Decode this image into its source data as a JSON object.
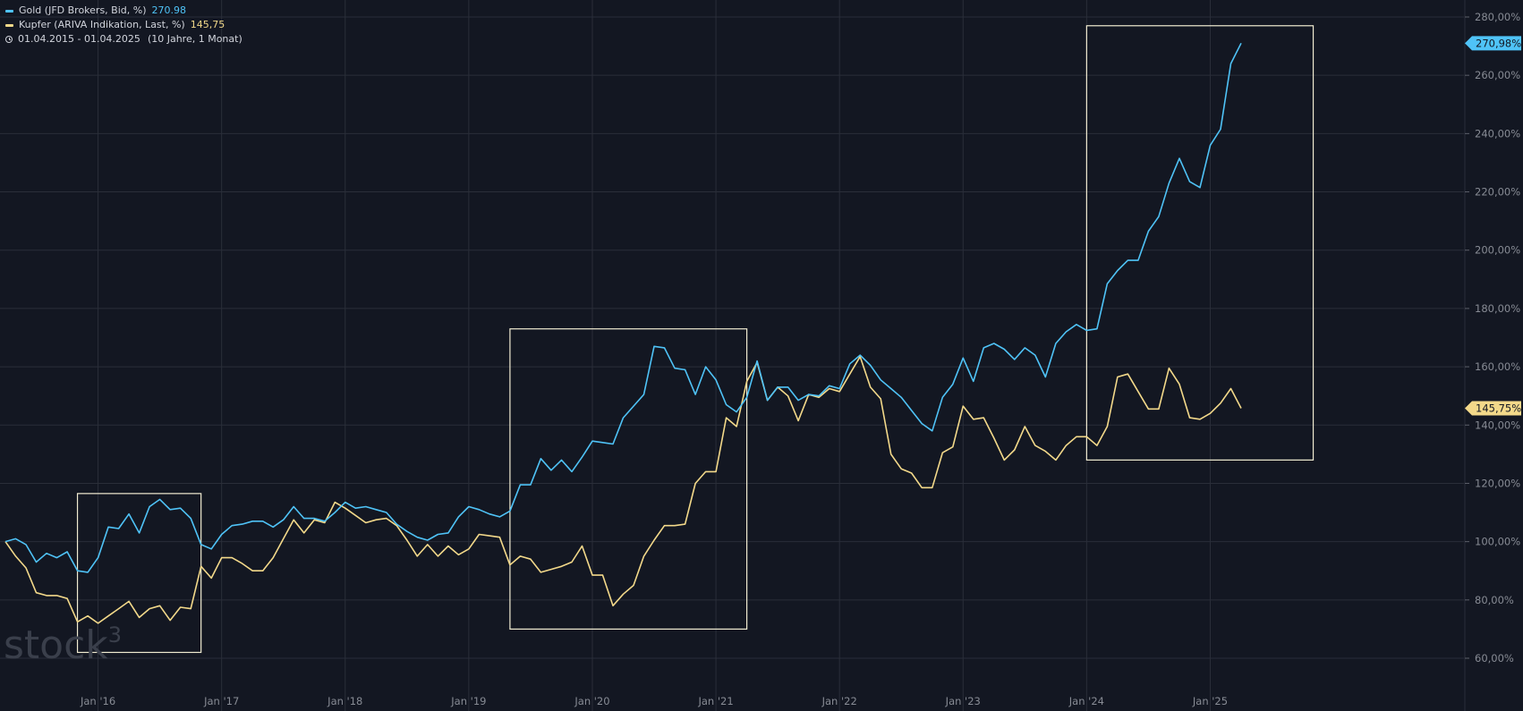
{
  "legend": {
    "gold_label": "Gold (JFD Brokers, Bid, %)",
    "gold_value": "270.98",
    "copper_label": "Kupfer (ARIVA Indikation, Last, %)",
    "copper_value": "145,75",
    "period": "01.04.2015 - 01.04.2025",
    "period_detail": "(10 Jahre, 1 Monat)"
  },
  "watermark": {
    "brand": "stock",
    "superscript": "3"
  },
  "colors": {
    "background": "#131722",
    "grid": "#2a2e39",
    "gold": "#4fc3f7",
    "copper": "#f3d98a",
    "axis_text": "#878b94",
    "box": "#f1ecd2"
  },
  "chart_data": {
    "type": "line",
    "ylim": [
      50,
      290
    ],
    "y_ticks": [
      60,
      80,
      100,
      120,
      140,
      160,
      180,
      200,
      220,
      240,
      260,
      280
    ],
    "y_tick_labels": [
      "60,00%",
      "80,00%",
      "100,00%",
      "120,00%",
      "140,00%",
      "160,00%",
      "180,00%",
      "200,00%",
      "220,00%",
      "240,00%",
      "260,00%",
      "280,00%"
    ],
    "x_range": [
      "2015-04",
      "2025-05"
    ],
    "x_ticks": [
      "2016-01",
      "2017-01",
      "2018-01",
      "2019-01",
      "2020-01",
      "2021-01",
      "2022-01",
      "2023-01",
      "2024-01",
      "2025-01"
    ],
    "x_tick_labels": [
      "Jan '16",
      "Jan '17",
      "Jan '18",
      "Jan '19",
      "Jan '20",
      "Jan '21",
      "Jan '22",
      "Jan '23",
      "Jan '24",
      "Jan '25"
    ],
    "price_labels": [
      {
        "series": "Gold",
        "value": 270.98,
        "text": "270,98%"
      },
      {
        "series": "Kupfer",
        "value": 145.75,
        "text": "145,75%"
      }
    ],
    "annotation_boxes": [
      {
        "x_from": "2015-11",
        "x_to": "2016-11",
        "y_from": 62,
        "y_to": 116.5
      },
      {
        "x_from": "2019-05",
        "x_to": "2021-04",
        "y_from": 70,
        "y_to": 173
      },
      {
        "x_from": "2024-01",
        "x_to": "2025-11",
        "y_from": 128,
        "y_to": 277
      }
    ],
    "series": [
      {
        "name": "Gold (JFD Brokers, Bid, %)",
        "start": "2015-04",
        "values": [
          100,
          101,
          99,
          93,
          96,
          94.5,
          96.5,
          90,
          89.5,
          94.5,
          105,
          104.5,
          109.5,
          103,
          112,
          114.5,
          111,
          111.5,
          108,
          99,
          97.5,
          102.5,
          105.5,
          106,
          107,
          107,
          105,
          107.5,
          112,
          108,
          108,
          107,
          110,
          113.5,
          111.5,
          112,
          111,
          110,
          106,
          103.5,
          101.5,
          100.5,
          102.5,
          103,
          108.5,
          112,
          111,
          109.5,
          108.5,
          110.5,
          119.5,
          119.5,
          128.5,
          124.5,
          128,
          124,
          129,
          134.5,
          134,
          133.5,
          142.5,
          146.5,
          150.5,
          167,
          166.5,
          159.5,
          159,
          150.5,
          160,
          155.5,
          147,
          144.5,
          149.5,
          162,
          148.5,
          153,
          153,
          148.5,
          150.5,
          150,
          153.5,
          152.5,
          161,
          164,
          160.5,
          155.5,
          152.5,
          149.5,
          145,
          140.5,
          138,
          149.5,
          154,
          163,
          155,
          166.5,
          168,
          166,
          162.5,
          166.5,
          164,
          156.5,
          168,
          172,
          174.5,
          172.5,
          173,
          188.5,
          193,
          196.5,
          196.5,
          206.5,
          211.5,
          223,
          231.5,
          223.5,
          221.5,
          236,
          241.5,
          264,
          271
        ]
      },
      {
        "name": "Kupfer (ARIVA Indikation, Last, %)",
        "start": "2015-04",
        "values": [
          100,
          95,
          91,
          82.5,
          81.5,
          81.5,
          80.5,
          72.5,
          74.5,
          72,
          74.5,
          77,
          79.5,
          74,
          77,
          78,
          73,
          77.5,
          77,
          91.5,
          87.5,
          94.5,
          94.5,
          92.5,
          90,
          90,
          94.5,
          101,
          107.5,
          103,
          107.5,
          106.5,
          113.5,
          111.5,
          109,
          106.5,
          107.5,
          108,
          105.5,
          100.5,
          95,
          99,
          95,
          98.5,
          95.5,
          97.5,
          102.5,
          102,
          101.5,
          92,
          95,
          94,
          89.5,
          90.5,
          91.5,
          93,
          98.5,
          88.5,
          88.5,
          78,
          82,
          85,
          95,
          100.5,
          105.5,
          105.5,
          106,
          120,
          124,
          124,
          142.5,
          139.5,
          155,
          161.5,
          148.5,
          153,
          150,
          141.5,
          150.5,
          149.5,
          152.5,
          151.5,
          157.5,
          163.5,
          153,
          149,
          130,
          125,
          123.5,
          118.5,
          118.5,
          130.5,
          132.5,
          146.5,
          142,
          142.5,
          135.5,
          128,
          131.5,
          139.5,
          133,
          131,
          128,
          133,
          136,
          136,
          133,
          139.5,
          156.5,
          157.5,
          151.5,
          145.5,
          145.5,
          159.5,
          154,
          142.5,
          142,
          144,
          147.5,
          152.5,
          145.75
        ]
      }
    ]
  }
}
